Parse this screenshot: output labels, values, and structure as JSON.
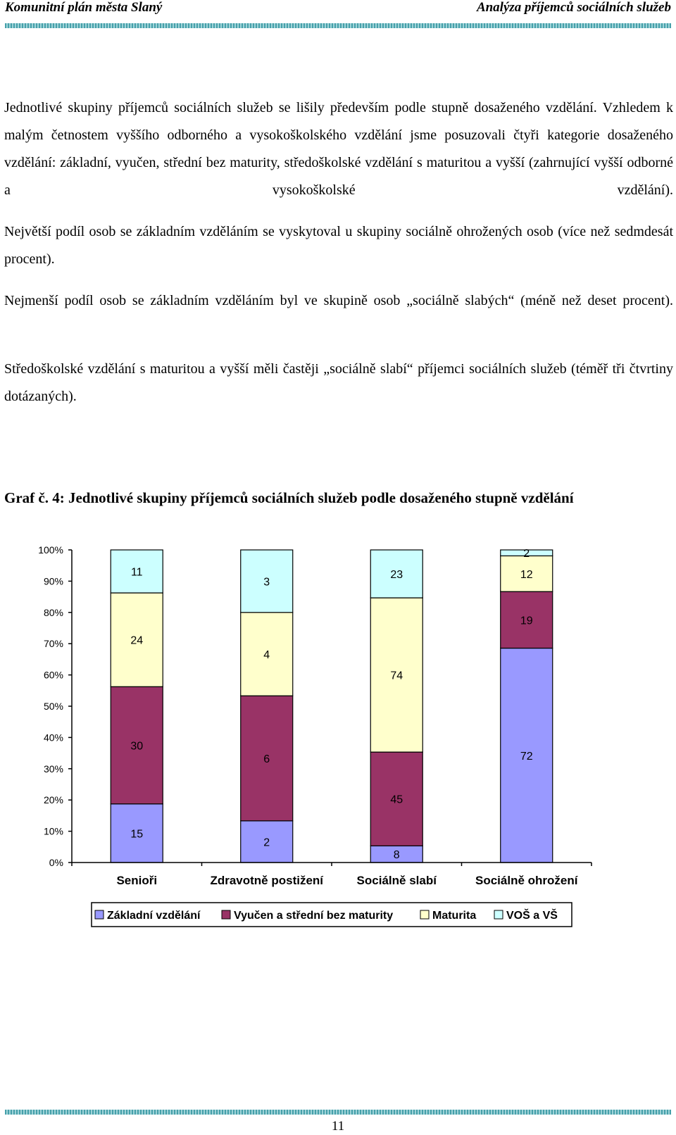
{
  "header": {
    "left": "Komunitní plán města Slaný",
    "right": "Analýza příjemců sociálních služeb"
  },
  "paragraphs": [
    "Jednotlivé skupiny příjemců sociálních služeb se lišily především podle stupně dosaženého vzdělání. Vzhledem k malým četnostem vyššího odborného a vysokoškolského vzdělání jsme posuzovali čtyři kategorie dosaženého vzdělání: základní, vyučen, střední bez maturity, středoškolské vzdělání s maturitou a vyšší (zahrnující vyšší odborné a vysokoškolské vzdělání).",
    "Největší podíl osob se základním vzděláním se vyskytoval u skupiny sociálně ohrožených osob (více než sedmdesát procent).",
    "Nejmenší podíl osob se základním vzděláním byl ve skupině osob „sociálně slabých“ (méně než deset procent).",
    "Středoškolské vzdělání s maturitou a vyšší měli častěji „sociálně slabí“ příjemci sociálních služeb (téměř tři čtvrtiny dotázaných)."
  ],
  "figure_heading": "Graf č. 4: Jednotlivé skupiny příjemců sociálních služeb podle dosaženého stupně vzdělání",
  "page_number": "11",
  "chart_data": {
    "type": "bar",
    "stacked": "percent",
    "title": "",
    "xlabel": "",
    "ylabel": "",
    "ylim": [
      0,
      100
    ],
    "yticks": [
      "0%",
      "10%",
      "20%",
      "30%",
      "40%",
      "50%",
      "60%",
      "70%",
      "80%",
      "90%",
      "100%"
    ],
    "grid": false,
    "legend_position": "bottom",
    "categories": [
      "Senioři",
      "Zdravotně postižení",
      "Sociálně slabí",
      "Sociálně ohrožení"
    ],
    "series": [
      {
        "name": "Základní vzdělání",
        "color": "#9999ff",
        "values": [
          15,
          2,
          8,
          72
        ]
      },
      {
        "name": "Vyučen a střední bez maturity",
        "color": "#993366",
        "values": [
          30,
          6,
          45,
          19
        ]
      },
      {
        "name": "Maturita",
        "color": "#ffffcc",
        "values": [
          24,
          4,
          74,
          12
        ]
      },
      {
        "name": "VOŠ a VŠ",
        "color": "#ccffff",
        "values": [
          11,
          3,
          23,
          2
        ]
      }
    ]
  }
}
